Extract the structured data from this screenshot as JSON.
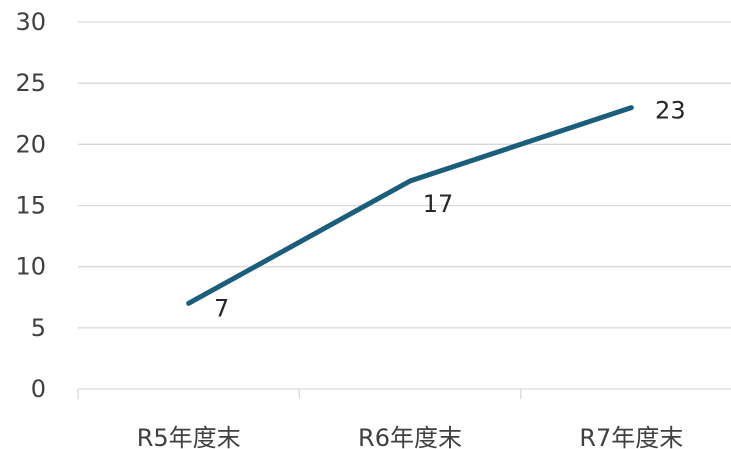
{
  "chart_data": {
    "type": "line",
    "title": "",
    "xlabel": "",
    "ylabel": "",
    "categories": [
      "R5年度末",
      "R6年度末",
      "R7年度末"
    ],
    "series": [
      {
        "values": [
          7,
          17,
          23
        ],
        "color": "#1b5e7b"
      }
    ],
    "ylim": [
      0,
      30
    ],
    "yticks": [
      0,
      5,
      10,
      15,
      20,
      25,
      30
    ],
    "grid": true,
    "legend": "none",
    "data_labels": true
  }
}
